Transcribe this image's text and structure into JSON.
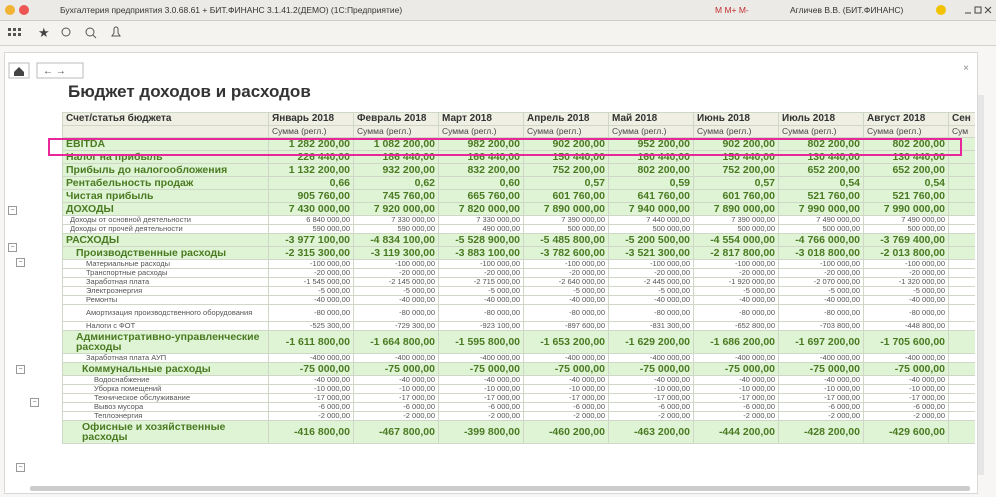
{
  "title_bar": {
    "title": "Бухгалтерия предприятия 3.0.68.61 + БИТ.ФИНАНС 3.1.41.2(ДЕМО) (1С:Предприятие)",
    "memory": "M M+ M-",
    "user": "Агличев В.В. (БИТ.ФИНАНС)"
  },
  "page": {
    "title": "Бюджет доходов и расходов"
  },
  "table": {
    "columns": [
      "Счет/статья бюджета",
      "Январь 2018",
      "Февраль 2018",
      "Март 2018",
      "Апрель 2018",
      "Май 2018",
      "Июнь 2018",
      "Июль 2018",
      "Август 2018",
      "Сен"
    ],
    "subheaders": [
      "Сумма (регл.)",
      "Сумма (регл.)",
      "Сумма (регл.)",
      "Сумма (регл.)",
      "Сумма (регл.)",
      "Сумма (регл.)",
      "Сумма (регл.)",
      "Сумма (регл.)",
      "Сум"
    ],
    "rows": [
      [
        "EBITDA",
        "1 282 200,00",
        "1 082 200,00",
        "982 200,00",
        "902 200,00",
        "952 200,00",
        "902 200,00",
        "802 200,00",
        "802 200,00"
      ],
      [
        "Налог на прибыль",
        "226 440,00",
        "186 440,00",
        "166 440,00",
        "150 440,00",
        "160 440,00",
        "150 440,00",
        "130 440,00",
        "130 440,00"
      ],
      [
        "Прибыль до налогообложения",
        "1 132 200,00",
        "932 200,00",
        "832 200,00",
        "752 200,00",
        "802 200,00",
        "752 200,00",
        "652 200,00",
        "652 200,00"
      ],
      [
        "Рентабельность продаж",
        "0,66",
        "0,62",
        "0,60",
        "0,57",
        "0,59",
        "0,57",
        "0,54",
        "0,54"
      ],
      [
        "Чистая прибыль",
        "905 760,00",
        "745 760,00",
        "665 760,00",
        "601 760,00",
        "641 760,00",
        "601 760,00",
        "521 760,00",
        "521 760,00"
      ],
      [
        "ДОХОДЫ",
        "7 430 000,00",
        "7 920 000,00",
        "7 820 000,00",
        "7 890 000,00",
        "7 940 000,00",
        "7 890 000,00",
        "7 990 000,00",
        "7 990 000,00"
      ],
      [
        "Доходы от основной деятельности",
        "6 840 000,00",
        "7 330 000,00",
        "7 330 000,00",
        "7 390 000,00",
        "7 440 000,00",
        "7 390 000,00",
        "7 490 000,00",
        "7 490 000,00"
      ],
      [
        "Доходы от прочей деятельности",
        "590 000,00",
        "590 000,00",
        "490 000,00",
        "500 000,00",
        "500 000,00",
        "500 000,00",
        "500 000,00",
        "500 000,00"
      ],
      [
        "РАСХОДЫ",
        "-3 977 100,00",
        "-4 834 100,00",
        "-5 528 900,00",
        "-5 485 800,00",
        "-5 200 500,00",
        "-4 554 000,00",
        "-4 766 000,00",
        "-3 769 400,00"
      ],
      [
        "Производственные расходы",
        "-2 315 300,00",
        "-3 119 300,00",
        "-3 883 100,00",
        "-3 782 600,00",
        "-3 521 300,00",
        "-2 817 800,00",
        "-3 018 800,00",
        "-2 013 800,00"
      ],
      [
        "Материальные расходы",
        "-100 000,00",
        "-100 000,00",
        "-100 000,00",
        "-100 000,00",
        "-100 000,00",
        "-100 000,00",
        "-100 000,00",
        "-100 000,00"
      ],
      [
        "Транспортные расходы",
        "-20 000,00",
        "-20 000,00",
        "-20 000,00",
        "-20 000,00",
        "-20 000,00",
        "-20 000,00",
        "-20 000,00",
        "-20 000,00"
      ],
      [
        "Заработная плата",
        "-1 545 000,00",
        "-2 145 000,00",
        "-2 715 000,00",
        "-2 640 000,00",
        "-2 445 000,00",
        "-1 920 000,00",
        "-2 070 000,00",
        "-1 320 000,00"
      ],
      [
        "Электроэнергия",
        "-5 000,00",
        "-5 000,00",
        "-5 000,00",
        "-5 000,00",
        "-5 000,00",
        "-5 000,00",
        "-5 000,00",
        "-5 000,00"
      ],
      [
        "Ремонты",
        "-40 000,00",
        "-40 000,00",
        "-40 000,00",
        "-40 000,00",
        "-40 000,00",
        "-40 000,00",
        "-40 000,00",
        "-40 000,00"
      ],
      [
        "Амортизация производственного оборудования",
        "-80 000,00",
        "-80 000,00",
        "-80 000,00",
        "-80 000,00",
        "-80 000,00",
        "-80 000,00",
        "-80 000,00",
        "-80 000,00"
      ],
      [
        "Налоги с ФОТ",
        "-525 300,00",
        "-729 300,00",
        "-923 100,00",
        "-897 600,00",
        "-831 300,00",
        "-652 800,00",
        "-703 800,00",
        "-448 800,00"
      ],
      [
        "Административно-управленческие расходы",
        "-1 611 800,00",
        "-1 664 800,00",
        "-1 595 800,00",
        "-1 653 200,00",
        "-1 629 200,00",
        "-1 686 200,00",
        "-1 697 200,00",
        "-1 705 600,00"
      ],
      [
        "Заработная плата АУП",
        "-400 000,00",
        "-400 000,00",
        "-400 000,00",
        "-400 000,00",
        "-400 000,00",
        "-400 000,00",
        "-400 000,00",
        "-400 000,00"
      ],
      [
        "Коммунальные расходы",
        "-75 000,00",
        "-75 000,00",
        "-75 000,00",
        "-75 000,00",
        "-75 000,00",
        "-75 000,00",
        "-75 000,00",
        "-75 000,00"
      ],
      [
        "Водоснабжение",
        "-40 000,00",
        "-40 000,00",
        "-40 000,00",
        "-40 000,00",
        "-40 000,00",
        "-40 000,00",
        "-40 000,00",
        "-40 000,00"
      ],
      [
        "Уборка помещений",
        "-10 000,00",
        "-10 000,00",
        "-10 000,00",
        "-10 000,00",
        "-10 000,00",
        "-10 000,00",
        "-10 000,00",
        "-10 000,00"
      ],
      [
        "Техническое обслуживание",
        "-17 000,00",
        "-17 000,00",
        "-17 000,00",
        "-17 000,00",
        "-17 000,00",
        "-17 000,00",
        "-17 000,00",
        "-17 000,00"
      ],
      [
        "Вывоз мусора",
        "-6 000,00",
        "-6 000,00",
        "-6 000,00",
        "-6 000,00",
        "-6 000,00",
        "-6 000,00",
        "-6 000,00",
        "-6 000,00"
      ],
      [
        "Теплоэнергия",
        "-2 000,00",
        "-2 000,00",
        "-2 000,00",
        "-2 000,00",
        "-2 000,00",
        "-2 000,00",
        "-2 000,00",
        "-2 000,00"
      ],
      [
        "Офисные и хозяйственные расходы",
        "-416 800,00",
        "-467 800,00",
        "-399 800,00",
        "-460 200,00",
        "-463 200,00",
        "-444 200,00",
        "-428 200,00",
        "-429 600,00"
      ]
    ]
  }
}
